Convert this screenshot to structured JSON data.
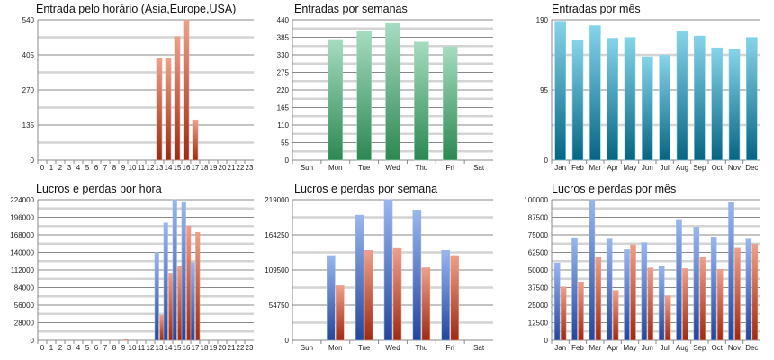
{
  "chart_data": [
    {
      "type": "bar",
      "title": "Entrada pelo horário (Asia,Europe,USA)",
      "categories": [
        "0",
        "1",
        "2",
        "3",
        "4",
        "5",
        "6",
        "7",
        "8",
        "9",
        "10",
        "11",
        "12",
        "13",
        "14",
        "15",
        "16",
        "17",
        "18",
        "19",
        "20",
        "21",
        "22",
        "23"
      ],
      "series": [
        {
          "name": "Entradas",
          "color": "red",
          "values": [
            0,
            0,
            0,
            0,
            0,
            0,
            0,
            0,
            0,
            0,
            0,
            0,
            0,
            392,
            390,
            475,
            540,
            155,
            0,
            0,
            0,
            0,
            0,
            0
          ]
        }
      ],
      "ylim": [
        0,
        540
      ],
      "yticks": [
        "0",
        "135",
        "270",
        "405",
        "540"
      ],
      "grid": true
    },
    {
      "type": "bar",
      "title": "Entradas por semanas",
      "categories": [
        "Sun",
        "Mon",
        "Tue",
        "Wed",
        "Thu",
        "Fri",
        "Sat"
      ],
      "series": [
        {
          "name": "Entradas",
          "color": "green",
          "values": [
            0,
            378,
            405,
            428,
            370,
            355,
            0
          ]
        }
      ],
      "ylim": [
        0,
        440
      ],
      "yticks": [
        "0",
        "55",
        "110",
        "165",
        "220",
        "275",
        "330",
        "385",
        "440"
      ],
      "grid": true
    },
    {
      "type": "bar",
      "title": "Entradas por mês",
      "categories": [
        "Jan",
        "Feb",
        "Mar",
        "Apr",
        "May",
        "Jun",
        "Jul",
        "Aug",
        "Sep",
        "Oct",
        "Nov",
        "Dec"
      ],
      "series": [
        {
          "name": "Entradas",
          "color": "teal",
          "values": [
            188,
            162,
            182,
            165,
            166,
            140,
            142,
            175,
            168,
            152,
            150,
            166
          ]
        }
      ],
      "ylim": [
        0,
        190
      ],
      "yticks": [
        "0",
        "95",
        "190"
      ],
      "grid": true
    },
    {
      "type": "bar",
      "title": "Lucros e perdas por hora",
      "categories": [
        "0",
        "1",
        "2",
        "3",
        "4",
        "5",
        "6",
        "7",
        "8",
        "9",
        "10",
        "11",
        "12",
        "13",
        "14",
        "15",
        "16",
        "17",
        "18",
        "19",
        "20",
        "21",
        "22",
        "23"
      ],
      "series": [
        {
          "name": "Lucros",
          "color": "blue",
          "values": [
            0,
            0,
            0,
            0,
            0,
            0,
            0,
            0,
            0,
            0,
            0,
            0,
            0,
            140000,
            187000,
            224000,
            221000,
            124000,
            0,
            0,
            0,
            0,
            0,
            0
          ]
        },
        {
          "name": "Perdas",
          "color": "red",
          "values": [
            0,
            0,
            0,
            0,
            0,
            0,
            0,
            0,
            0,
            1000,
            0,
            0,
            0,
            40000,
            107000,
            118000,
            182000,
            172000,
            0,
            0,
            0,
            0,
            0,
            0
          ]
        }
      ],
      "ylim": [
        0,
        224000
      ],
      "yticks": [
        "0",
        "28000",
        "56000",
        "84000",
        "112000",
        "140000",
        "168000",
        "196000",
        "224000"
      ],
      "grid": true
    },
    {
      "type": "bar",
      "title": "Lucros e perdas por semana",
      "categories": [
        "Sun",
        "Mon",
        "Tue",
        "Wed",
        "Thu",
        "Fri",
        "Sat"
      ],
      "series": [
        {
          "name": "Lucros",
          "color": "blue",
          "values": [
            0,
            132000,
            195000,
            219000,
            203000,
            140000,
            0
          ]
        },
        {
          "name": "Perdas",
          "color": "red",
          "values": [
            0,
            85000,
            140000,
            143000,
            113000,
            132000,
            0
          ]
        }
      ],
      "ylim": [
        0,
        219000
      ],
      "yticks": [
        "0",
        "54750",
        "109500",
        "164250",
        "219000"
      ],
      "grid": true
    },
    {
      "type": "bar",
      "title": "Lucros e perdas por mês",
      "categories": [
        "Jan",
        "Feb",
        "Mar",
        "Apr",
        "May",
        "Jun",
        "Jul",
        "Aug",
        "Sep",
        "Oct",
        "Nov",
        "Dec"
      ],
      "series": [
        {
          "name": "Lucros",
          "color": "blue",
          "values": [
            55000,
            73000,
            100000,
            72000,
            64500,
            69500,
            53000,
            86000,
            80500,
            73500,
            98500,
            72000
          ]
        },
        {
          "name": "Perdas",
          "color": "red",
          "values": [
            38000,
            41500,
            59500,
            35500,
            68000,
            51500,
            31500,
            51000,
            59000,
            50500,
            65500,
            68500
          ]
        }
      ],
      "ylim": [
        0,
        100000
      ],
      "yticks": [
        "0",
        "12500",
        "25000",
        "37500",
        "50000",
        "62500",
        "75000",
        "87500",
        "100000"
      ],
      "grid": true
    }
  ],
  "colors": {
    "red": [
      "#eea08a",
      "#9e2a12"
    ],
    "green": [
      "#a6dcc0",
      "#2d8752"
    ],
    "teal": [
      "#86d4ea",
      "#066582"
    ],
    "blue": [
      "#9ab6ee",
      "#24469a"
    ]
  }
}
